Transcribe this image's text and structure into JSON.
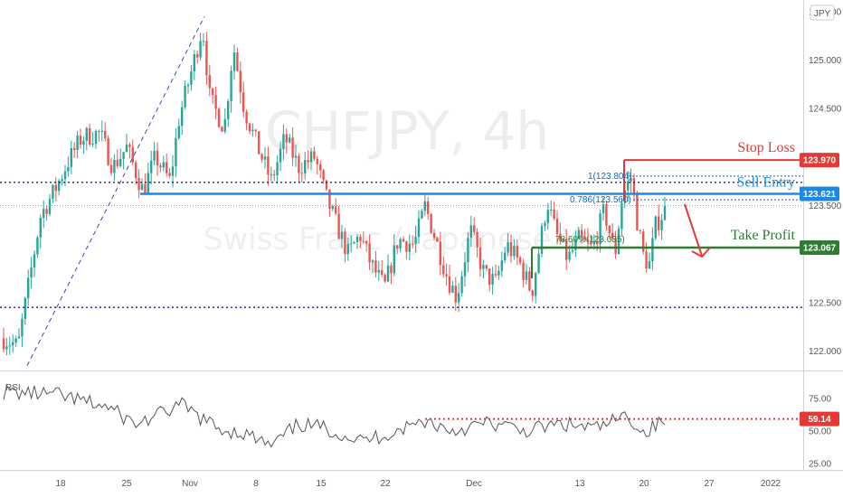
{
  "chart_data": {
    "type": "candlestick",
    "watermark": {
      "symbol": "CHFJPY, 4h",
      "description": "Swiss Franc / Japanese Yen"
    },
    "currency": "JPY",
    "price_axis": {
      "range": [
        121.8,
        125.62
      ],
      "ticks": [
        "125.500",
        "125.000",
        "124.500",
        "123.500",
        "122.500",
        "122.000"
      ]
    },
    "time_axis": {
      "ticks": [
        "18",
        "25",
        "Nov",
        "8",
        "15",
        "22",
        "Dec",
        "13",
        "20",
        "27",
        "2022"
      ]
    },
    "levels": [
      {
        "label": "Stop Loss",
        "value": 123.97,
        "tag": "123.970",
        "color": "#e53935"
      },
      {
        "label": "Sell Entry",
        "value": 123.621,
        "tag": "123.621",
        "color": "#1e88e5"
      },
      {
        "label": "Take Profit",
        "value": 123.067,
        "tag": "123.067",
        "color": "#2e7d32"
      }
    ],
    "support_levels": [
      122.45,
      123.74
    ],
    "fib_labels": [
      {
        "text": "1(123.804)",
        "color": "#1565c0"
      },
      {
        "text": "0.786(123.560)",
        "color": "#1565c0"
      },
      {
        "text": "78.60%(123.085)",
        "color": "#2e7d32"
      }
    ],
    "rsi": {
      "label": "RSI",
      "range": [
        20,
        95
      ],
      "ticks": [
        "75.00",
        "50.00",
        "25.00"
      ],
      "level": {
        "value": 59.14,
        "tag": "59.14",
        "color": "#e53935"
      }
    },
    "colors": {
      "up": "#26a69a",
      "down": "#ef5350"
    }
  }
}
